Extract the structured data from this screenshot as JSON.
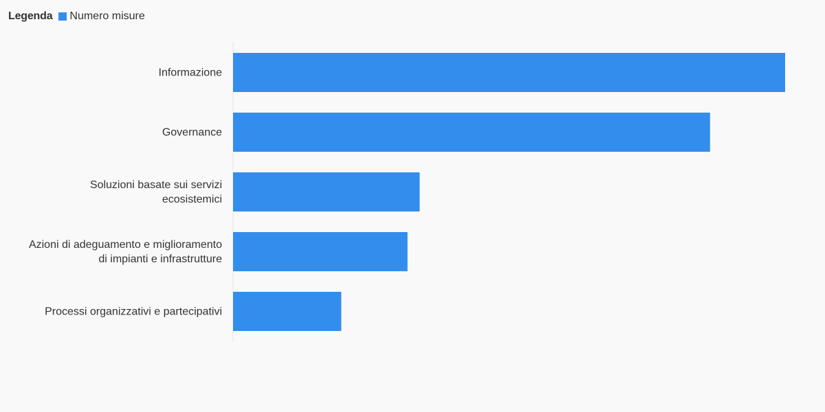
{
  "legend": {
    "title": "Legenda",
    "items": [
      {
        "label": "Numero misure",
        "color": "#338ded"
      }
    ]
  },
  "chart_data": {
    "type": "bar",
    "orientation": "horizontal",
    "categories": [
      "Informazione",
      "Governance",
      "Soluzioni basate sui servizi ecosistemici",
      "Azioni di adeguamento e miglioramento di impianti e infrastrutture",
      "Processi organizzativi e partecipativi"
    ],
    "series": [
      {
        "name": "Numero misure",
        "color": "#338ded",
        "values": [
          50,
          43.2,
          16.9,
          15.8,
          9.8
        ]
      }
    ],
    "xlim": [
      0,
      50
    ],
    "grid": false,
    "legend_position": "top-left"
  }
}
